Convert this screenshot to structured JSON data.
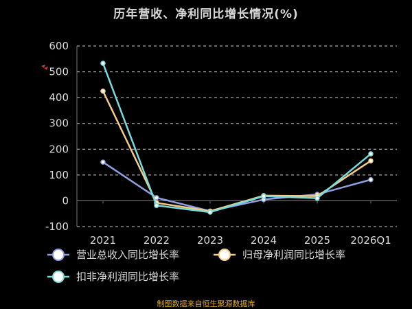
{
  "chart_data": {
    "type": "line",
    "title": "历年营收、净利同比增长情况(%)",
    "categories": [
      "2021",
      "2022",
      "2023",
      "2024",
      "2025",
      "2026Q1"
    ],
    "ylim": [
      -100,
      600
    ],
    "yticks": [
      -100,
      0,
      100,
      200,
      300,
      400,
      500,
      600
    ],
    "grid": true,
    "legend_position": "bottom",
    "series": [
      {
        "name": "营业总收入同比增长率",
        "color": "#8fa0e0",
        "values": [
          150,
          12,
          -40,
          5,
          25,
          82
        ]
      },
      {
        "name": "归母净利润同比增长率",
        "color": "#f7cc86",
        "values": [
          425,
          -8,
          -40,
          20,
          18,
          155
        ]
      },
      {
        "name": "扣非净利润同比增长率",
        "color": "#78dcdc",
        "values": [
          533,
          -18,
          -44,
          18,
          10,
          182
        ]
      }
    ],
    "source": "制图数据来自恒生聚源数据库"
  }
}
